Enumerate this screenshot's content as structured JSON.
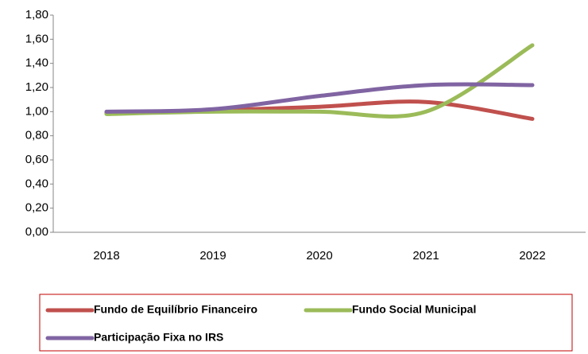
{
  "chart_data": {
    "type": "line",
    "categories": [
      "2018",
      "2019",
      "2020",
      "2021",
      "2022"
    ],
    "series": [
      {
        "name": "Fundo de Equilíbrio Financeiro",
        "color": "#c0504d",
        "values": [
          0.99,
          1.01,
          1.04,
          1.08,
          0.94
        ]
      },
      {
        "name": "Fundo Social Municipal",
        "color": "#9bbb59",
        "values": [
          0.98,
          1.0,
          1.0,
          1.0,
          1.55
        ]
      },
      {
        "name": "Participação Fixa no IRS",
        "color": "#8064a2",
        "values": [
          1.0,
          1.02,
          1.13,
          1.22,
          1.22
        ]
      }
    ],
    "ylim": [
      0,
      1.8
    ],
    "yticks": [
      {
        "value": 0,
        "label": "0,00"
      },
      {
        "value": 0.2,
        "label": "0,20"
      },
      {
        "value": 0.4,
        "label": "0,40"
      },
      {
        "value": 0.6,
        "label": "0,60"
      },
      {
        "value": 0.8,
        "label": "0,80"
      },
      {
        "value": 1.0,
        "label": "1,00"
      },
      {
        "value": 1.2,
        "label": "1,20"
      },
      {
        "value": 1.4,
        "label": "1,40"
      },
      {
        "value": 1.6,
        "label": "1,60"
      },
      {
        "value": 1.8,
        "label": "1,80"
      }
    ],
    "smooth": true,
    "legend": "bottom"
  }
}
